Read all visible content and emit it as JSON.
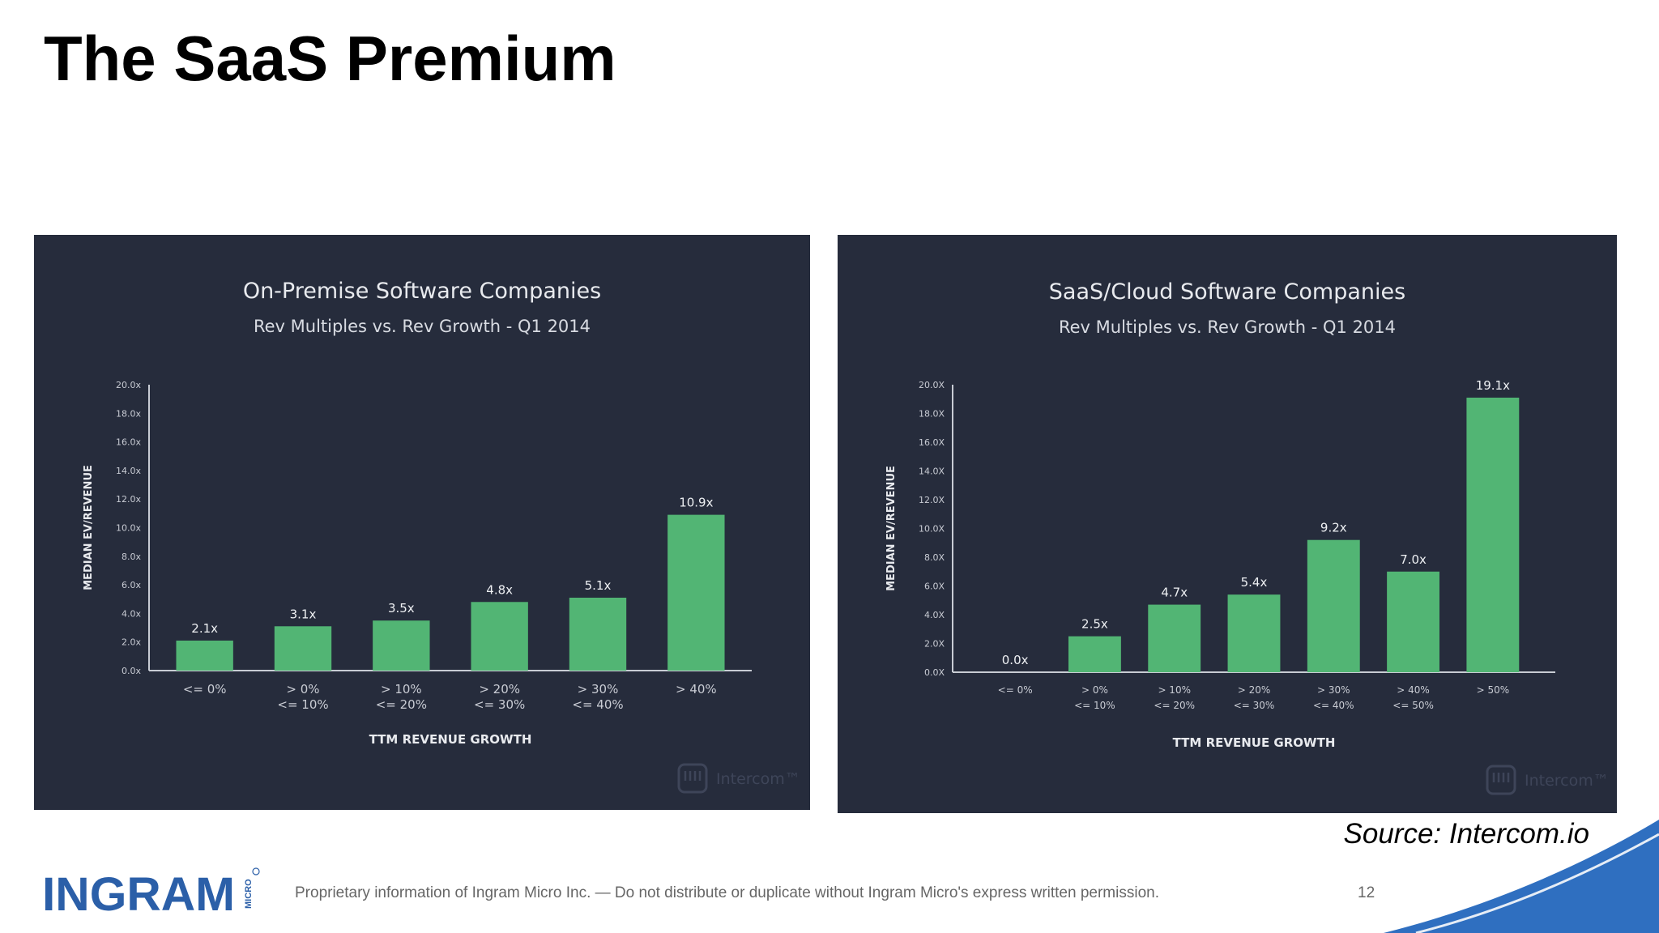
{
  "slide": {
    "title": "The SaaS Premium",
    "source": "Source: Intercom.io",
    "footer": "Proprietary information of Ingram Micro Inc. — Do not distribute or duplicate without Ingram Micro's express written permission.",
    "page_number": "12",
    "logo_text": "INGRAM",
    "logo_subtext": "MICRO"
  },
  "colors": {
    "panel_bg": "#262c3c",
    "bar": "#52b574",
    "text": "#ffffff",
    "axis": "#c8ccd4",
    "accent": "#2f6fc0"
  },
  "chart_data": [
    {
      "type": "bar",
      "title": "On-Premise Software Companies",
      "subtitle": "Rev Multiples vs. Rev Growth - Q1 2014",
      "xlabel": "TTM REVENUE GROWTH",
      "ylabel": "MEDIAN EV/REVENUE",
      "ylim": [
        0,
        20
      ],
      "yticks": [
        "0.0x",
        "2.0x",
        "4.0x",
        "6.0x",
        "8.0x",
        "10.0x",
        "12.0x",
        "14.0x",
        "16.0x",
        "18.0x",
        "20.0x"
      ],
      "categories": [
        [
          "<= 0%"
        ],
        [
          "> 0%",
          "<= 10%"
        ],
        [
          "> 10%",
          "<= 20%"
        ],
        [
          "> 20%",
          "<= 30%"
        ],
        [
          "> 30%",
          "<= 40%"
        ],
        [
          "> 40%"
        ]
      ],
      "values": [
        2.1,
        3.1,
        3.5,
        4.8,
        5.1,
        10.9
      ],
      "data_labels": [
        "2.1x",
        "3.1x",
        "3.5x",
        "4.8x",
        "5.1x",
        "10.9x"
      ],
      "watermark": "Intercom™"
    },
    {
      "type": "bar",
      "title": "SaaS/Cloud Software Companies",
      "subtitle": "Rev Multiples vs. Rev Growth - Q1 2014",
      "xlabel": "TTM REVENUE GROWTH",
      "ylabel": "MEDIAN EV/REVENUE",
      "ylim": [
        0,
        20
      ],
      "yticks": [
        "0.0X",
        "2.0X",
        "4.0X",
        "6.0X",
        "8.0X",
        "10.0X",
        "12.0X",
        "14.0X",
        "16.0X",
        "18.0X",
        "20.0X"
      ],
      "categories": [
        [
          "<= 0%"
        ],
        [
          "> 0%",
          "<= 10%"
        ],
        [
          "> 10%",
          "<= 20%"
        ],
        [
          "> 20%",
          "<= 30%"
        ],
        [
          "> 30%",
          "<= 40%"
        ],
        [
          "> 40%",
          "<= 50%"
        ],
        [
          "> 50%"
        ]
      ],
      "values": [
        0.0,
        2.5,
        4.7,
        5.4,
        9.2,
        7.0,
        19.1
      ],
      "data_labels": [
        "0.0x",
        "2.5x",
        "4.7x",
        "5.4x",
        "9.2x",
        "7.0x",
        "19.1x"
      ],
      "watermark": "Intercom™"
    }
  ]
}
